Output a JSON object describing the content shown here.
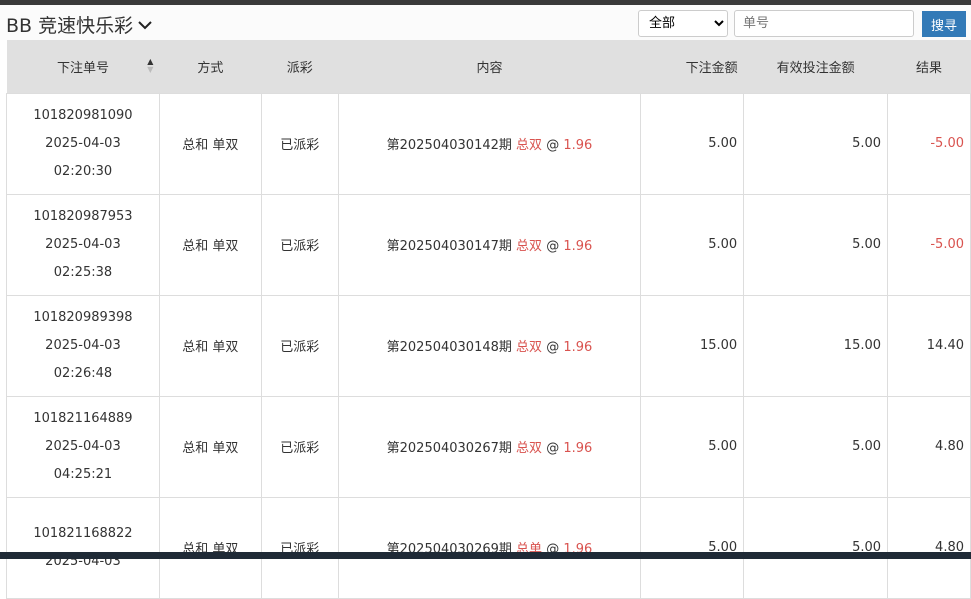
{
  "header": {
    "title": "BB 竞速快乐彩",
    "filter_selected": "全部",
    "search_placeholder": "单号",
    "search_button": "搜寻"
  },
  "columns": [
    "下注单号",
    "方式",
    "派彩",
    "内容",
    "下注金额",
    "有效投注金额",
    "结果"
  ],
  "colors": {
    "accent": "#337ab7",
    "negative": "#d9534f"
  },
  "rows": [
    {
      "id": "101820981090",
      "date": "2025-04-03",
      "time": "02:20:30",
      "method": "总和 单双",
      "payout": "已派彩",
      "issue": "第202504030142期",
      "pick": "总双",
      "at": "@",
      "odds": "1.96",
      "amount": "5.00",
      "valid": "5.00",
      "result": "-5.00",
      "neg": true
    },
    {
      "id": "101820987953",
      "date": "2025-04-03",
      "time": "02:25:38",
      "method": "总和 单双",
      "payout": "已派彩",
      "issue": "第202504030147期",
      "pick": "总双",
      "at": "@",
      "odds": "1.96",
      "amount": "5.00",
      "valid": "5.00",
      "result": "-5.00",
      "neg": true
    },
    {
      "id": "101820989398",
      "date": "2025-04-03",
      "time": "02:26:48",
      "method": "总和 单双",
      "payout": "已派彩",
      "issue": "第202504030148期",
      "pick": "总双",
      "at": "@",
      "odds": "1.96",
      "amount": "15.00",
      "valid": "15.00",
      "result": "14.40",
      "neg": false
    },
    {
      "id": "101821164889",
      "date": "2025-04-03",
      "time": "04:25:21",
      "method": "总和 单双",
      "payout": "已派彩",
      "issue": "第202504030267期",
      "pick": "总双",
      "at": "@",
      "odds": "1.96",
      "amount": "5.00",
      "valid": "5.00",
      "result": "4.80",
      "neg": false
    },
    {
      "id": "101821168822",
      "date": "2025-04-03",
      "time": "",
      "method": "总和 单双",
      "payout": "已派彩",
      "issue": "第202504030269期",
      "pick": "总单",
      "at": "@",
      "odds": "1.96",
      "amount": "5.00",
      "valid": "5.00",
      "result": "4.80",
      "neg": false
    }
  ]
}
